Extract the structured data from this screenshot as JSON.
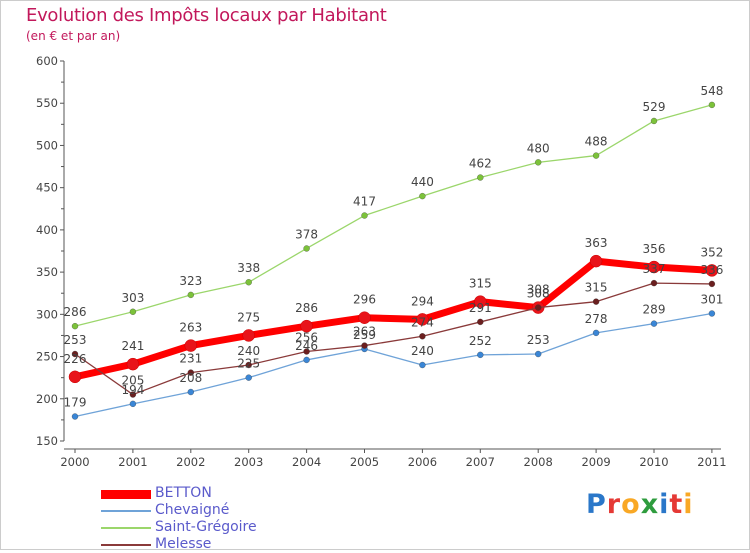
{
  "title": "Evolution des Impôts locaux par Habitant",
  "subtitle": "(en € et par an)",
  "logo": {
    "text": "Proxiti",
    "letters": [
      {
        "ch": "P",
        "color": "#2a77c9"
      },
      {
        "ch": "r",
        "color": "#e53935"
      },
      {
        "ch": "o",
        "color": "#f9a825"
      },
      {
        "ch": "x",
        "color": "#2e9c3e"
      },
      {
        "ch": "i",
        "color": "#2a77c9"
      },
      {
        "ch": "t",
        "color": "#e53935"
      },
      {
        "ch": "i",
        "color": "#f9a825"
      }
    ]
  },
  "chart_data": {
    "type": "line",
    "x": [
      "2000",
      "2001",
      "2002",
      "2003",
      "2004",
      "2005",
      "2006",
      "2007",
      "2008",
      "2009",
      "2010",
      "2011"
    ],
    "ylim": [
      150,
      600
    ],
    "yticks": [
      "150",
      "200",
      "250",
      "300",
      "350",
      "400",
      "450",
      "500",
      "550",
      "600"
    ],
    "grid": false,
    "legend_position": "bottom-left",
    "series": [
      {
        "name": "BETTON",
        "color": "#ff0000",
        "marker": "#e8141a",
        "width": 7,
        "marker_r": 6,
        "values": [
          226,
          241,
          263,
          275,
          286,
          296,
          294,
          315,
          308,
          363,
          356,
          352
        ],
        "labels": [
          "226",
          "241",
          "263",
          "275",
          "286",
          "296",
          "294",
          "315",
          "308",
          "363",
          "356",
          "352"
        ]
      },
      {
        "name": "Chevaigné",
        "color": "#6fa3d8",
        "marker": "#3a86d6",
        "width": 1.3,
        "marker_r": 3,
        "values": [
          179,
          194,
          208,
          225,
          246,
          259,
          240,
          252,
          253,
          278,
          289,
          301
        ],
        "labels": [
          "179",
          "194",
          "208",
          "225",
          "246",
          "259",
          "240",
          "252",
          "253",
          "278",
          "289",
          "301"
        ]
      },
      {
        "name": "Saint-Grégoire",
        "color": "#9bd66b",
        "marker": "#7cc23a",
        "width": 1.3,
        "marker_r": 3,
        "values": [
          286,
          303,
          323,
          338,
          378,
          417,
          440,
          462,
          480,
          488,
          529,
          548
        ],
        "labels": [
          "286",
          "303",
          "323",
          "338",
          "378",
          "417",
          "440",
          "462",
          "480",
          "488",
          "529",
          "548"
        ]
      },
      {
        "name": "Melesse",
        "color": "#8a3a3a",
        "marker": "#6b1f1f",
        "width": 1.3,
        "marker_r": 3,
        "values": [
          253,
          205,
          231,
          240,
          256,
          263,
          274,
          291,
          308,
          315,
          337,
          336
        ],
        "labels": [
          "253",
          "205",
          "231",
          "240",
          "256",
          "263",
          "274",
          "291",
          "308",
          "315",
          "337",
          "336"
        ]
      }
    ]
  }
}
